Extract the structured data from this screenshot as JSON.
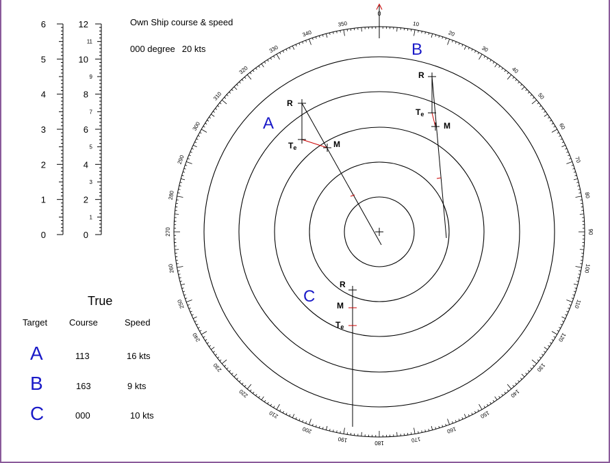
{
  "own_ship": {
    "title": "Own Ship course & speed",
    "course": "000 degree",
    "speed": "20 kts"
  },
  "scale_left": {
    "labels": [
      "0",
      "1",
      "2",
      "3",
      "4",
      "5",
      "6"
    ],
    "max": 6
  },
  "scale_right": {
    "major_labels": [
      "0",
      "2",
      "4",
      "6",
      "8",
      "10",
      "12"
    ],
    "minor_labels": [
      "1",
      "3",
      "5",
      "7",
      "9",
      "11"
    ],
    "max": 12
  },
  "radar": {
    "compass_labels": [
      "0",
      "10",
      "20",
      "30",
      "40",
      "50",
      "60",
      "70",
      "80",
      "90",
      "100",
      "110",
      "120",
      "130",
      "140",
      "150",
      "160",
      "170",
      "180",
      "190",
      "200",
      "210",
      "220",
      "230",
      "240",
      "250",
      "260",
      "270",
      "280",
      "290",
      "300",
      "310",
      "320",
      "330",
      "340",
      "350"
    ],
    "north_marker": "0",
    "ring_count": 5,
    "ring_color": "#000000",
    "vector_color": "#000000",
    "triangle_color": "#cc0000"
  },
  "plot_targets": [
    {
      "name": "A",
      "labels": {
        "R": "R",
        "M": "M",
        "Te": "T",
        "Te_sub": "e"
      }
    },
    {
      "name": "B",
      "labels": {
        "R": "R",
        "M": "M",
        "Te": "T",
        "Te_sub": "e"
      }
    },
    {
      "name": "C",
      "labels": {
        "R": "R",
        "M": "M",
        "Te": "T",
        "Te_sub": "e"
      }
    }
  ],
  "true_table": {
    "title": "True",
    "headers": {
      "target": "Target",
      "course": "Course",
      "speed": "Speed"
    },
    "rows": [
      {
        "target": "A",
        "course": "113",
        "speed": "16 kts"
      },
      {
        "target": "B",
        "course": "163",
        "speed": "9 kts"
      },
      {
        "target": "C",
        "course": "000",
        "speed": "10 kts"
      }
    ]
  },
  "colors": {
    "target_letter": "#1a1ac8",
    "frame": "#8a5a9a"
  }
}
